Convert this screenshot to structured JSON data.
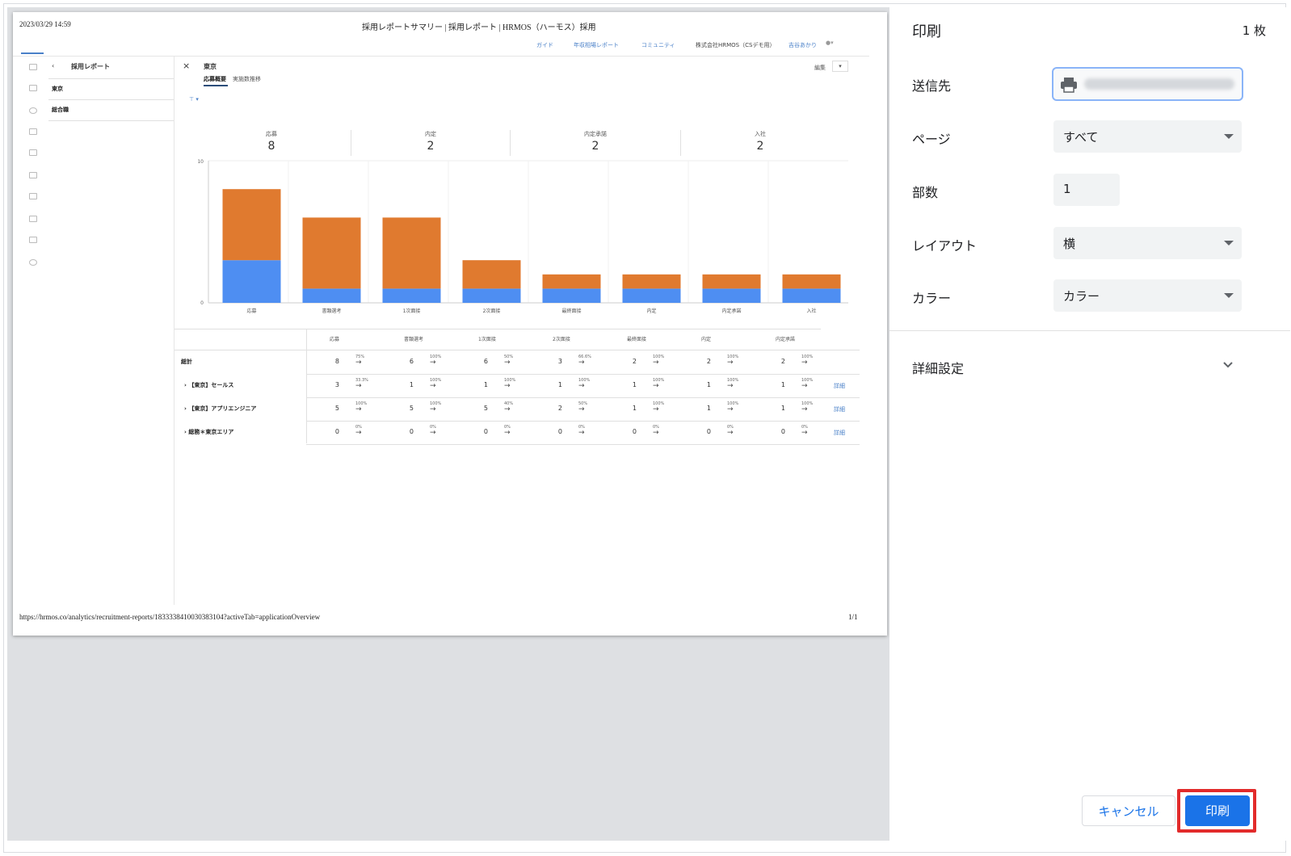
{
  "preview": {
    "header_date": "2023/03/29 14:59",
    "header_title": "採用レポートサマリー | 採用レポート | HRMOS（ハーモス）採用",
    "nav_links": [
      "ガイド",
      "年収相場レポート",
      "コミュニティ",
      "株式会社HRMOS（CSデモ用）",
      "吉谷あかり"
    ],
    "back_label": "採用レポート",
    "sidebar_items": [
      "東京",
      "総合職"
    ],
    "report_title": "東京",
    "tabs": [
      "応募概要",
      "実施数推移"
    ],
    "edit_label": "編集",
    "kpis": [
      {
        "label": "応募",
        "value": "8"
      },
      {
        "label": "内定",
        "value": "2"
      },
      {
        "label": "内定承諾",
        "value": "2"
      },
      {
        "label": "入社",
        "value": "2"
      }
    ],
    "footer_url": "https://hrmos.co/analytics/recruitment-reports/1833338410030383104?activeTab=applicationOverview",
    "footer_page": "1/1",
    "table": {
      "headers": [
        "応募",
        "書類選考",
        "1次面接",
        "2次面接",
        "最終面接",
        "内定",
        "内定承諾"
      ],
      "rows": [
        {
          "name": "総計",
          "values": [
            "8",
            "6",
            "6",
            "3",
            "2",
            "2",
            "2"
          ],
          "pcts": [
            "75%",
            "100%",
            "50%",
            "66.6%",
            "100%",
            "100%",
            "100%"
          ],
          "detail": ""
        },
        {
          "name": "【東京】セールス",
          "values": [
            "3",
            "1",
            "1",
            "1",
            "1",
            "1",
            "1"
          ],
          "pcts": [
            "33.3%",
            "100%",
            "100%",
            "100%",
            "100%",
            "100%",
            "100%"
          ],
          "detail": "詳細"
        },
        {
          "name": "【東京】アプリエンジニア",
          "values": [
            "5",
            "5",
            "5",
            "2",
            "1",
            "1",
            "1"
          ],
          "pcts": [
            "100%",
            "100%",
            "40%",
            "50%",
            "100%",
            "100%",
            "100%"
          ],
          "detail": "詳細"
        },
        {
          "name": "総務＊東京エリア",
          "values": [
            "0",
            "0",
            "0",
            "0",
            "0",
            "0",
            "0"
          ],
          "pcts": [
            "0%",
            "0%",
            "0%",
            "0%",
            "0%",
            "0%",
            "0%"
          ],
          "detail": "詳細"
        }
      ]
    }
  },
  "chart_data": {
    "type": "bar",
    "title": "",
    "categories": [
      "応募",
      "書類選考",
      "1次面接",
      "2次面接",
      "最終面接",
      "内定",
      "内定承諾",
      "入社"
    ],
    "series": [
      {
        "name": "blue",
        "color": "#4e8ef2",
        "values": [
          3,
          1,
          1,
          1,
          1,
          1,
          1,
          1
        ]
      },
      {
        "name": "orange",
        "color": "#e07a2f",
        "values": [
          5,
          5,
          5,
          2,
          1,
          1,
          1,
          1
        ]
      }
    ],
    "ylim": [
      0,
      10
    ],
    "yticks": [
      "0",
      "10"
    ],
    "stacked": true
  },
  "panel": {
    "title": "印刷",
    "sheet_count": "1 枚",
    "destination_label": "送信先",
    "pages_label": "ページ",
    "pages_value": "すべて",
    "copies_label": "部数",
    "copies_value": "1",
    "layout_label": "レイアウト",
    "layout_value": "横",
    "color_label": "カラー",
    "color_value": "カラー",
    "more_settings_label": "詳細設定",
    "cancel_label": "キャンセル",
    "print_label": "印刷"
  }
}
